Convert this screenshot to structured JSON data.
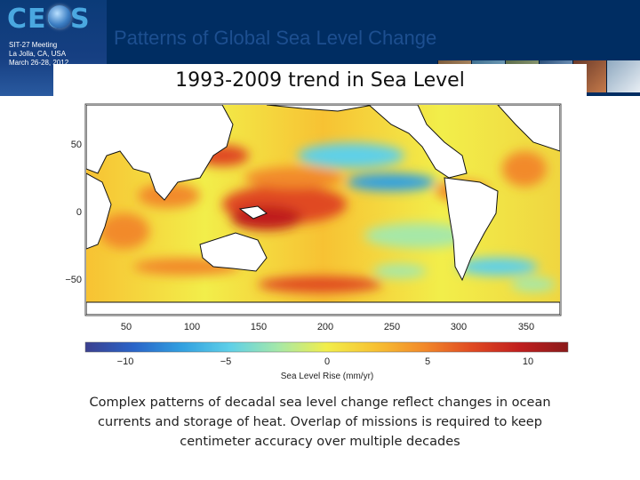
{
  "header": {
    "logo_text": "CEOS",
    "meeting_lines": [
      "SIT-27 Meeting",
      "La Jolla, CA, USA",
      "March 26-28, 2012"
    ],
    "slide_title": "Patterns of Global Sea Level Change"
  },
  "figure": {
    "title": "1993-2009 trend in Sea Level",
    "map": {
      "lat_ticks": [
        "50",
        "0",
        "−50"
      ],
      "lon_ticks": [
        "50",
        "100",
        "150",
        "200",
        "250",
        "300",
        "350"
      ]
    },
    "colorbar": {
      "ticks": [
        "−10",
        "−5",
        "0",
        "5",
        "10"
      ],
      "label": "Sea Level Rise (mm/yr)",
      "colors": [
        "#3b3f8f",
        "#2a64c8",
        "#32a0e0",
        "#5fd0e8",
        "#a6e8a8",
        "#f2ee4a",
        "#f7c233",
        "#f28a2a",
        "#e04a22",
        "#c01e1e",
        "#8a1a1a"
      ]
    }
  },
  "caption": "Complex patterns of decadal sea level change reflect changes in ocean currents and storage of heat.  Overlap of missions is required to keep centimeter accuracy over multiple decades"
}
